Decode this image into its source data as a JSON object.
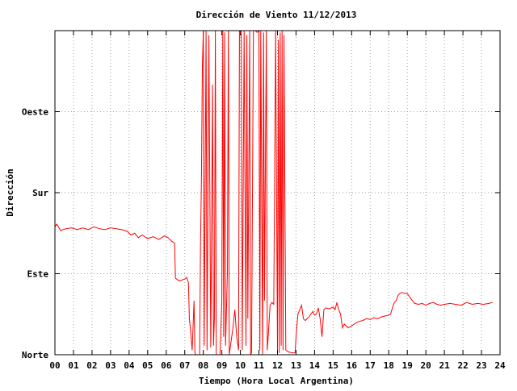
{
  "chart_data": {
    "type": "line",
    "title": "Dirección de Viento 11/12/2013",
    "xlabel": "Tiempo (Hora Local Argentina)",
    "ylabel": "Dirección",
    "xlim": [
      0,
      24
    ],
    "ylim": [
      0,
      360
    ],
    "x_ticks": [
      {
        "value": 0,
        "label": "00"
      },
      {
        "value": 1,
        "label": "01"
      },
      {
        "value": 2,
        "label": "02"
      },
      {
        "value": 3,
        "label": "03"
      },
      {
        "value": 4,
        "label": "04"
      },
      {
        "value": 5,
        "label": "05"
      },
      {
        "value": 6,
        "label": "06"
      },
      {
        "value": 7,
        "label": "07"
      },
      {
        "value": 8,
        "label": "08"
      },
      {
        "value": 9,
        "label": "09"
      },
      {
        "value": 10,
        "label": "10"
      },
      {
        "value": 11,
        "label": "11"
      },
      {
        "value": 12,
        "label": "12"
      },
      {
        "value": 13,
        "label": "13"
      },
      {
        "value": 14,
        "label": "14"
      },
      {
        "value": 15,
        "label": "15"
      },
      {
        "value": 16,
        "label": "16"
      },
      {
        "value": 17,
        "label": "17"
      },
      {
        "value": 18,
        "label": "18"
      },
      {
        "value": 19,
        "label": "19"
      },
      {
        "value": 20,
        "label": "20"
      },
      {
        "value": 21,
        "label": "21"
      },
      {
        "value": 22,
        "label": "22"
      },
      {
        "value": 23,
        "label": "23"
      },
      {
        "value": 24,
        "label": "24"
      }
    ],
    "y_ticks": [
      {
        "value": 0,
        "label": "Norte"
      },
      {
        "value": 90,
        "label": "Este"
      },
      {
        "value": 180,
        "label": "Sur"
      },
      {
        "value": 270,
        "label": "Oeste"
      }
    ],
    "grid": true,
    "color": "#ff0000",
    "series": [
      {
        "values": [
          [
            0.0,
            142
          ],
          [
            0.1,
            145
          ],
          [
            0.3,
            138
          ],
          [
            0.6,
            140
          ],
          [
            0.9,
            141
          ],
          [
            1.2,
            139
          ],
          [
            1.5,
            141
          ],
          [
            1.8,
            139
          ],
          [
            2.1,
            142
          ],
          [
            2.4,
            140
          ],
          [
            2.7,
            139
          ],
          [
            3.0,
            141
          ],
          [
            3.3,
            140
          ],
          [
            3.6,
            139
          ],
          [
            3.9,
            137
          ],
          [
            4.1,
            133
          ],
          [
            4.3,
            135
          ],
          [
            4.5,
            130
          ],
          [
            4.7,
            133
          ],
          [
            5.0,
            129
          ],
          [
            5.3,
            131
          ],
          [
            5.6,
            128
          ],
          [
            5.9,
            132
          ],
          [
            6.1,
            130
          ],
          [
            6.3,
            126
          ],
          [
            6.45,
            124
          ],
          [
            6.5,
            85
          ],
          [
            6.7,
            82
          ],
          [
            7.0,
            84
          ],
          [
            7.1,
            86
          ],
          [
            7.2,
            80
          ],
          [
            7.25,
            40
          ],
          [
            7.3,
            30
          ],
          [
            7.4,
            5
          ],
          [
            7.5,
            60
          ],
          [
            7.55,
            2
          ],
          [
            7.6,
            0
          ],
          [
            7.7,
            0
          ],
          [
            7.8,
            0
          ],
          [
            7.85,
            120
          ],
          [
            7.9,
            200
          ],
          [
            7.95,
            320
          ],
          [
            8.0,
            360
          ],
          [
            8.05,
            10
          ],
          [
            8.15,
            360
          ],
          [
            8.2,
            5
          ],
          [
            8.3,
            355
          ],
          [
            8.4,
            8
          ],
          [
            8.5,
            300
          ],
          [
            8.55,
            10
          ],
          [
            8.6,
            40
          ],
          [
            8.65,
            360
          ],
          [
            8.7,
            0
          ],
          [
            8.8,
            0
          ],
          [
            8.9,
            0
          ],
          [
            9.0,
            60
          ],
          [
            9.05,
            360
          ],
          [
            9.1,
            20
          ],
          [
            9.15,
            358
          ],
          [
            9.2,
            10
          ],
          [
            9.3,
            90
          ],
          [
            9.35,
            360
          ],
          [
            9.4,
            0
          ],
          [
            9.5,
            15
          ],
          [
            9.6,
            30
          ],
          [
            9.7,
            50
          ],
          [
            9.8,
            20
          ],
          [
            9.9,
            5
          ],
          [
            9.95,
            360
          ],
          [
            10.0,
            358
          ],
          [
            10.05,
            360
          ],
          [
            10.1,
            5
          ],
          [
            10.2,
            360
          ],
          [
            10.3,
            10
          ],
          [
            10.35,
            355
          ],
          [
            10.4,
            40
          ],
          [
            10.5,
            360
          ],
          [
            10.55,
            0
          ],
          [
            10.6,
            2
          ],
          [
            10.7,
            360
          ],
          [
            10.8,
            360
          ],
          [
            10.9,
            358
          ],
          [
            11.0,
            360
          ],
          [
            11.05,
            5
          ],
          [
            11.1,
            360
          ],
          [
            11.2,
            0
          ],
          [
            11.25,
            358
          ],
          [
            11.3,
            60
          ],
          [
            11.4,
            360
          ],
          [
            11.45,
            5
          ],
          [
            11.5,
            20
          ],
          [
            11.6,
            55
          ],
          [
            11.7,
            58
          ],
          [
            11.8,
            56
          ],
          [
            11.9,
            360
          ],
          [
            12.0,
            5
          ],
          [
            12.05,
            350
          ],
          [
            12.1,
            2
          ],
          [
            12.15,
            358
          ],
          [
            12.2,
            10
          ],
          [
            12.25,
            360
          ],
          [
            12.3,
            5
          ],
          [
            12.35,
            355
          ],
          [
            12.45,
            5
          ],
          [
            12.6,
            3
          ],
          [
            12.8,
            2
          ],
          [
            12.95,
            2
          ],
          [
            13.0,
            20
          ],
          [
            13.1,
            45
          ],
          [
            13.2,
            50
          ],
          [
            13.3,
            55
          ],
          [
            13.4,
            40
          ],
          [
            13.5,
            38
          ],
          [
            13.7,
            42
          ],
          [
            13.9,
            48
          ],
          [
            14.0,
            44
          ],
          [
            14.1,
            45
          ],
          [
            14.2,
            52
          ],
          [
            14.3,
            40
          ],
          [
            14.4,
            20
          ],
          [
            14.5,
            50
          ],
          [
            14.6,
            52
          ],
          [
            14.8,
            51
          ],
          [
            15.0,
            53
          ],
          [
            15.1,
            50
          ],
          [
            15.2,
            58
          ],
          [
            15.3,
            50
          ],
          [
            15.4,
            45
          ],
          [
            15.5,
            30
          ],
          [
            15.6,
            34
          ],
          [
            15.8,
            30
          ],
          [
            16.0,
            32
          ],
          [
            16.2,
            35
          ],
          [
            16.4,
            37
          ],
          [
            16.6,
            38
          ],
          [
            16.8,
            40
          ],
          [
            17.0,
            39
          ],
          [
            17.2,
            41
          ],
          [
            17.4,
            40
          ],
          [
            17.6,
            42
          ],
          [
            17.8,
            43
          ],
          [
            18.0,
            44
          ],
          [
            18.1,
            45
          ],
          [
            18.2,
            52
          ],
          [
            18.3,
            58
          ],
          [
            18.4,
            60
          ],
          [
            18.5,
            66
          ],
          [
            18.6,
            68
          ],
          [
            18.7,
            69
          ],
          [
            18.9,
            68
          ],
          [
            19.0,
            68
          ],
          [
            19.2,
            62
          ],
          [
            19.4,
            57
          ],
          [
            19.6,
            56
          ],
          [
            19.8,
            57
          ],
          [
            20.0,
            55
          ],
          [
            20.2,
            57
          ],
          [
            20.4,
            58
          ],
          [
            20.6,
            56
          ],
          [
            20.8,
            55
          ],
          [
            21.0,
            56
          ],
          [
            21.3,
            57
          ],
          [
            21.6,
            56
          ],
          [
            21.9,
            55
          ],
          [
            22.2,
            58
          ],
          [
            22.5,
            56
          ],
          [
            22.8,
            57
          ],
          [
            23.1,
            56
          ],
          [
            23.4,
            57
          ],
          [
            23.6,
            58
          ]
        ]
      }
    ]
  }
}
